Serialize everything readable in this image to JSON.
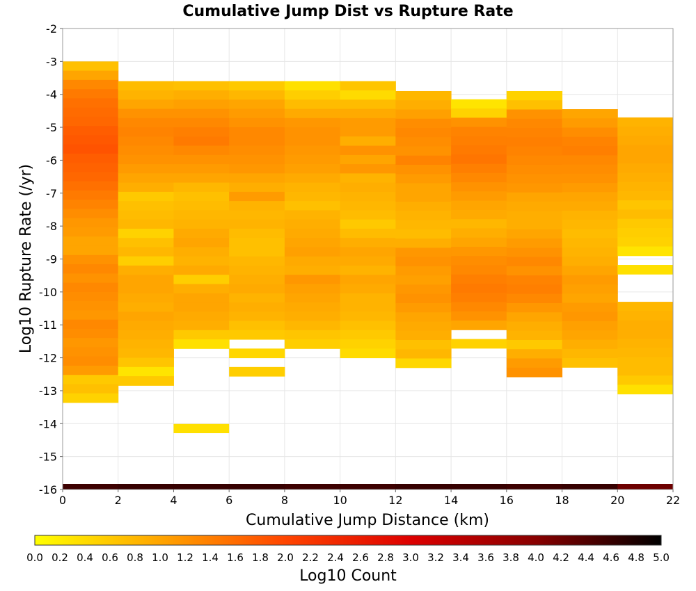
{
  "chart_data": {
    "type": "heatmap",
    "title": "Cumulative Jump Dist vs Rupture Rate",
    "xlabel": "Cumulative Jump Distance (km)",
    "ylabel": "Log10 Rupture Rate (/yr)",
    "xlim": [
      0,
      22
    ],
    "ylim": [
      -16,
      -2
    ],
    "x_ticks": [
      "0",
      "2",
      "4",
      "6",
      "8",
      "10",
      "12",
      "14",
      "16",
      "18",
      "20",
      "22"
    ],
    "y_ticks": [
      "-2",
      "-3",
      "-4",
      "-5",
      "-6",
      "-7",
      "-8",
      "-9",
      "-10",
      "-11",
      "-12",
      "-13",
      "-14",
      "-15",
      "-16"
    ],
    "x_bin_width": 2,
    "y_bin_height": 0.28,
    "grid": true,
    "colorbar": {
      "label": "Log10 Count",
      "range": [
        0,
        5
      ],
      "ticks": [
        "0.0",
        "0.2",
        "0.4",
        "0.6",
        "0.8",
        "1.0",
        "1.2",
        "1.4",
        "1.6",
        "1.8",
        "2.0",
        "2.2",
        "2.4",
        "2.6",
        "2.8",
        "3.0",
        "3.2",
        "3.4",
        "3.6",
        "3.8",
        "4.0",
        "4.2",
        "4.4",
        "4.6",
        "4.8",
        "5.0"
      ],
      "colors": [
        "#ffff00",
        "#ffa500",
        "#ff4500",
        "#dd0000",
        "#880000",
        "#000000"
      ]
    },
    "columns": [
      {
        "x": 0,
        "y_top": -3.0,
        "values": [
          0.7,
          1.0,
          1.3,
          1.45,
          1.55,
          1.6,
          1.65,
          1.75,
          1.8,
          1.85,
          1.75,
          1.7,
          1.65,
          1.55,
          1.45,
          1.35,
          1.25,
          1.15,
          1.1,
          1.0,
          1.0,
          1.2,
          1.3,
          1.2,
          1.3,
          1.25,
          1.2,
          1.15,
          1.3,
          1.25,
          1.15,
          1.2,
          1.25,
          1.1,
          0.6,
          0.7,
          0.5
        ]
      },
      {
        "x": 2,
        "y_top": -3.6,
        "values": [
          0.75,
          0.85,
          1.0,
          1.2,
          1.3,
          1.35,
          1.3,
          1.25,
          1.2,
          1.1,
          1.0,
          0.9,
          0.6,
          0.7,
          0.75,
          0.8,
          0.5,
          0.7,
          0.8,
          0.55,
          0.9,
          1.0,
          1.0,
          0.95,
          0.9,
          1.0,
          0.95,
          0.9,
          0.85,
          0.8,
          0.65,
          0.3,
          0.6
        ]
      },
      {
        "x": 4,
        "y_top": -3.6,
        "values": [
          0.7,
          0.9,
          1.05,
          1.2,
          1.3,
          1.4,
          1.45,
          1.3,
          1.2,
          1.1,
          1.0,
          0.8,
          0.7,
          0.75,
          0.8,
          0.85,
          0.95,
          1.0,
          0.9,
          0.85,
          0.95,
          0.55,
          0.9,
          1.0,
          1.0,
          0.95,
          0.9,
          0.6,
          0.35
        ]
      },
      {
        "x": 6,
        "y_top": -3.6,
        "values": [
          0.6,
          0.8,
          1.0,
          1.1,
          1.2,
          1.3,
          1.3,
          1.25,
          1.2,
          1.15,
          1.0,
          0.9,
          1.1,
          0.85,
          0.8,
          0.85,
          0.75,
          0.7,
          0.7,
          0.8,
          0.85,
          0.9,
          0.95,
          0.85,
          0.9,
          0.85,
          0.7,
          0.6,
          null,
          0.45,
          null,
          0.55
        ]
      },
      {
        "x": 8,
        "y_top": -3.6,
        "values": [
          0.35,
          0.55,
          0.75,
          0.95,
          1.15,
          1.2,
          1.2,
          1.15,
          1.1,
          1.05,
          0.95,
          0.85,
          0.8,
          0.7,
          0.85,
          0.9,
          0.95,
          1.0,
          1.05,
          0.95,
          0.9,
          1.15,
          1.05,
          1.0,
          0.95,
          0.9,
          0.8,
          0.65,
          0.55
        ]
      },
      {
        "x": 10,
        "y_top": -3.6,
        "values": [
          0.65,
          0.4,
          0.75,
          0.95,
          1.1,
          1.1,
          0.9,
          1.2,
          1.0,
          1.15,
          0.85,
          0.9,
          0.85,
          0.8,
          0.75,
          0.6,
          0.75,
          0.9,
          1.0,
          0.95,
          0.85,
          1.0,
          0.95,
          0.85,
          0.85,
          0.8,
          0.7,
          0.6,
          0.5,
          0.4
        ]
      },
      {
        "x": 12,
        "y_top": -3.9,
        "values": [
          0.8,
          0.9,
          1.05,
          1.25,
          1.3,
          1.25,
          1.2,
          1.35,
          1.2,
          1.1,
          1.0,
          1.0,
          0.9,
          0.85,
          0.8,
          0.75,
          0.9,
          1.15,
          1.2,
          1.1,
          1.05,
          1.15,
          1.2,
          1.1,
          1.0,
          0.95,
          0.9,
          0.7,
          0.8,
          0.45
        ]
      },
      {
        "x": 14,
        "y_top": -4.15,
        "values": [
          0.3,
          0.5,
          1.2,
          1.35,
          1.4,
          1.45,
          1.5,
          1.4,
          1.3,
          1.2,
          1.1,
          1.0,
          0.95,
          0.8,
          0.9,
          1.0,
          1.15,
          1.25,
          1.3,
          1.4,
          1.45,
          1.4,
          1.3,
          1.2,
          1.0,
          null,
          0.5
        ]
      },
      {
        "x": 16,
        "y_top": -3.9,
        "values": [
          0.5,
          0.7,
          1.2,
          1.3,
          1.35,
          1.4,
          1.35,
          1.3,
          1.25,
          1.2,
          1.15,
          1.0,
          0.95,
          0.9,
          0.9,
          1.0,
          1.1,
          1.2,
          1.3,
          1.2,
          1.35,
          1.4,
          1.3,
          1.15,
          1.0,
          0.9,
          0.85,
          0.6,
          0.9,
          1.1,
          1.2
        ]
      },
      {
        "x": 18,
        "y_top": -4.45,
        "values": [
          1.0,
          1.1,
          1.25,
          1.35,
          1.4,
          1.3,
          1.25,
          1.2,
          1.1,
          1.0,
          0.95,
          0.85,
          0.8,
          0.75,
          0.8,
          0.85,
          0.9,
          1.0,
          1.1,
          1.05,
          1.0,
          1.1,
          1.15,
          1.05,
          1.0,
          0.9,
          0.8,
          0.7
        ]
      },
      {
        "x": 20,
        "y_top": -4.7,
        "values": [
          0.85,
          0.9,
          0.95,
          1.0,
          1.0,
          0.95,
          0.9,
          0.85,
          0.8,
          0.65,
          0.75,
          0.6,
          0.55,
          0.5,
          0.3,
          null,
          0.35,
          null,
          null,
          null,
          0.8,
          0.85,
          0.9,
          0.9,
          0.85,
          0.8,
          0.75,
          0.75,
          0.6,
          0.35
        ]
      }
    ],
    "bottom_row": {
      "y": -16,
      "values": [
        4.55,
        4.6,
        4.6,
        4.6,
        4.55,
        4.55,
        4.6,
        4.6,
        4.55,
        4.6,
        4.2
      ]
    },
    "extra_cells": [
      {
        "x": 4,
        "y": -14.15,
        "value": 0.35
      }
    ]
  }
}
